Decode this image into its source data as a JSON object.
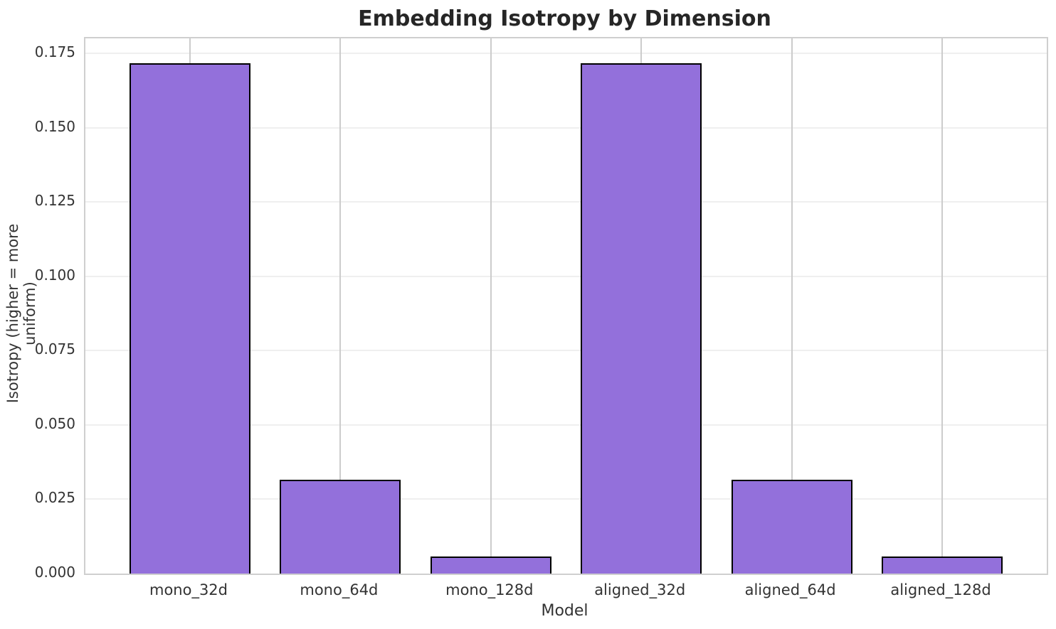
{
  "chart_data": {
    "type": "bar",
    "title": "Embedding Isotropy by Dimension",
    "xlabel": "Model",
    "ylabel": "Isotropy (higher = more uniform)",
    "categories": [
      "mono_32d",
      "mono_64d",
      "mono_128d",
      "aligned_32d",
      "aligned_64d",
      "aligned_128d"
    ],
    "values": [
      0.1716,
      0.0316,
      0.0058,
      0.1716,
      0.0316,
      0.0058
    ],
    "ylim": [
      0,
      0.18
    ],
    "ytick_labels": [
      "0.000",
      "0.025",
      "0.050",
      "0.075",
      "0.100",
      "0.125",
      "0.150",
      "0.175"
    ],
    "yticks": [
      0.0,
      0.025,
      0.05,
      0.075,
      0.1,
      0.125,
      0.15,
      0.175
    ],
    "grid": "on",
    "legend": "none",
    "bar_color": "#9370DB",
    "bar_edge_color": "#000000"
  },
  "colors": {
    "background": "#ffffff",
    "bar_fill": "#9370DB",
    "bar_edge": "#000000",
    "gridline_horizontal": "#efefef",
    "gridline_vertical": "#cccccc",
    "plot_border": "#cfcfcf",
    "title_text": "#262626",
    "tick_text": "#333333"
  }
}
